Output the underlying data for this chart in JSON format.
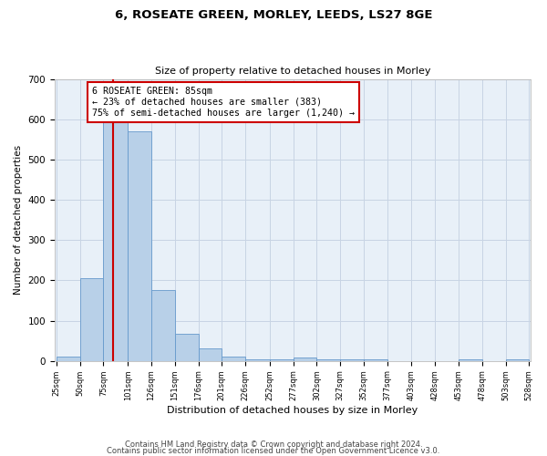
{
  "title": "6, ROSEATE GREEN, MORLEY, LEEDS, LS27 8GE",
  "subtitle": "Size of property relative to detached houses in Morley",
  "xlabel": "Distribution of detached houses by size in Morley",
  "ylabel": "Number of detached properties",
  "footer_line1": "Contains HM Land Registry data © Crown copyright and database right 2024.",
  "footer_line2": "Contains public sector information licensed under the Open Government Licence v3.0.",
  "bar_edges": [
    25,
    50,
    75,
    101,
    126,
    151,
    176,
    201,
    226,
    252,
    277,
    302,
    327,
    352,
    377,
    403,
    428,
    453,
    478,
    503,
    528
  ],
  "bar_heights": [
    10,
    205,
    650,
    570,
    175,
    68,
    30,
    10,
    5,
    5,
    8,
    3,
    3,
    3,
    0,
    0,
    0,
    3,
    0,
    3
  ],
  "bar_color": "#b8d0e8",
  "bar_edgecolor": "#6699cc",
  "grid_color": "#c8d4e4",
  "bg_color": "#e8f0f8",
  "property_size": 85,
  "annotation_text": "6 ROSEATE GREEN: 85sqm\n← 23% of detached houses are smaller (383)\n75% of semi-detached houses are larger (1,240) →",
  "annotation_box_color": "#ffffff",
  "annotation_box_edgecolor": "#cc0000",
  "vline_color": "#cc0000",
  "ylim": [
    0,
    700
  ],
  "yticks": [
    0,
    100,
    200,
    300,
    400,
    500,
    600,
    700
  ],
  "tick_labels": [
    "25sqm",
    "50sqm",
    "75sqm",
    "101sqm",
    "126sqm",
    "151sqm",
    "176sqm",
    "201sqm",
    "226sqm",
    "252sqm",
    "277sqm",
    "302sqm",
    "327sqm",
    "352sqm",
    "377sqm",
    "403sqm",
    "428sqm",
    "453sqm",
    "478sqm",
    "503sqm",
    "528sqm"
  ]
}
